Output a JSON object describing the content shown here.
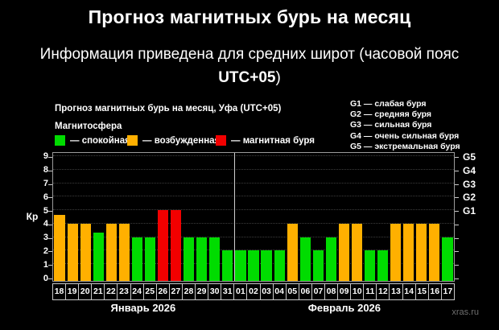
{
  "page": {
    "title": "Прогноз магнитных бурь на месяц",
    "subtitle_line1": "Информация приведена для средних широт (часовой пояс",
    "subtitle_utc": "UTC+05",
    "subtitle_paren": ")"
  },
  "chart": {
    "title": "Прогноз магнитных бурь на месяц, Уфа (UTC+05)",
    "magnetosphere_label": "Магнитосфера",
    "kp_axis_label": "Кр",
    "watermark": "xras.ru",
    "status_colors": {
      "quiet": "#00dc00",
      "excited": "#ffb000",
      "storm": "#f20000"
    },
    "legend": [
      {
        "status": "quiet",
        "label": "— спокойная"
      },
      {
        "status": "excited",
        "label": "— возбужденная"
      },
      {
        "status": "storm",
        "label": "— магнитная буря"
      }
    ],
    "g_scale_legend": [
      "G1 — слабая буря",
      "G2 — средняя буря",
      "G3 — сильная буря",
      "G4 — очень сильная буря",
      "G5 — экстремальная буря"
    ]
  },
  "chart_data": {
    "type": "bar",
    "title": "Прогноз магнитных бурь на месяц, Уфа (UTC+05)",
    "ylabel": "Кр",
    "ylim": [
      0,
      9
    ],
    "yticks": [
      0,
      1,
      2,
      3,
      4,
      5,
      6,
      7,
      8,
      9
    ],
    "right_axis": [
      {
        "label": "G1",
        "kp": 5
      },
      {
        "label": "G2",
        "kp": 6
      },
      {
        "label": "G3",
        "kp": 7
      },
      {
        "label": "G4",
        "kp": 8
      },
      {
        "label": "G5",
        "kp": 9
      }
    ],
    "categories": [
      "18",
      "19",
      "20",
      "21",
      "22",
      "23",
      "24",
      "25",
      "26",
      "27",
      "28",
      "29",
      "30",
      "31",
      "01",
      "02",
      "03",
      "04",
      "05",
      "06",
      "07",
      "08",
      "09",
      "10",
      "11",
      "12",
      "13",
      "14",
      "15",
      "16",
      "17"
    ],
    "values": [
      4.67,
      4,
      4,
      3.33,
      4,
      4,
      3,
      3,
      5,
      5,
      3,
      3,
      3,
      2,
      2,
      2,
      2,
      2,
      4,
      3,
      2,
      3,
      4,
      4,
      2,
      2,
      4,
      4,
      4,
      4,
      3
    ],
    "statuses": [
      "excited",
      "excited",
      "excited",
      "quiet",
      "excited",
      "excited",
      "quiet",
      "quiet",
      "storm",
      "storm",
      "quiet",
      "quiet",
      "quiet",
      "quiet",
      "quiet",
      "quiet",
      "quiet",
      "quiet",
      "excited",
      "quiet",
      "quiet",
      "quiet",
      "excited",
      "excited",
      "quiet",
      "quiet",
      "excited",
      "excited",
      "excited",
      "excited",
      "quiet"
    ],
    "months": [
      {
        "label": "Январь 2026",
        "days": 14
      },
      {
        "label": "Февраль 2026",
        "days": 17
      }
    ],
    "grid": "horizontal-dotted",
    "legend_position": "top-left"
  }
}
